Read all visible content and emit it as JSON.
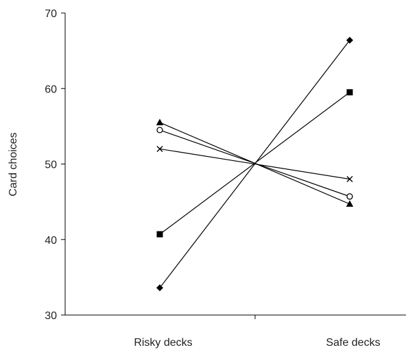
{
  "chart_data": {
    "type": "line",
    "ylabel": "Card choices",
    "xlabel": "",
    "categories": [
      "Risky decks",
      "Safe decks"
    ],
    "ylim": [
      30,
      70
    ],
    "yticks": [
      30,
      40,
      50,
      60,
      70
    ],
    "legend": "none",
    "grid": false,
    "series": [
      {
        "marker": "diamond-filled",
        "values": [
          33.6,
          66.4
        ]
      },
      {
        "marker": "square-filled",
        "values": [
          40.7,
          59.5
        ]
      },
      {
        "marker": "cross",
        "values": [
          52.0,
          48.0
        ]
      },
      {
        "marker": "circle-open",
        "values": [
          54.5,
          45.7
        ]
      },
      {
        "marker": "triangle-filled",
        "values": [
          55.5,
          44.7
        ]
      }
    ]
  }
}
